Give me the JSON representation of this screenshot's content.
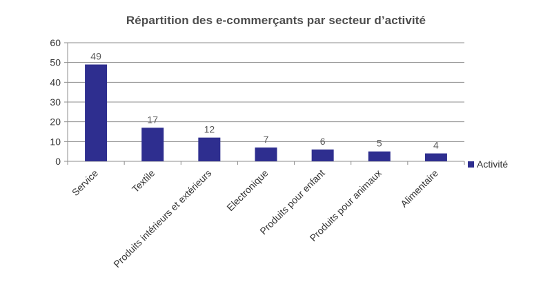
{
  "chart_data": {
    "type": "bar",
    "title": "Répartition des e-commerçants par secteur d’activité",
    "xlabel": "",
    "ylabel": "",
    "categories": [
      "Service",
      "Textile",
      "Produits intérieurs et extérieurs",
      "Electronique",
      "Produits pour enfant",
      "Produits pour animaux",
      "Alimentaire"
    ],
    "series": [
      {
        "name": "Activité",
        "values": [
          49,
          17,
          12,
          7,
          6,
          5,
          4
        ]
      }
    ],
    "ylim": [
      0,
      60
    ],
    "yticks": [
      0,
      10,
      20,
      30,
      40,
      50,
      60
    ],
    "grid": true,
    "legend_position": "right",
    "bar_color": "#2e2e8f",
    "data_labels": true
  }
}
